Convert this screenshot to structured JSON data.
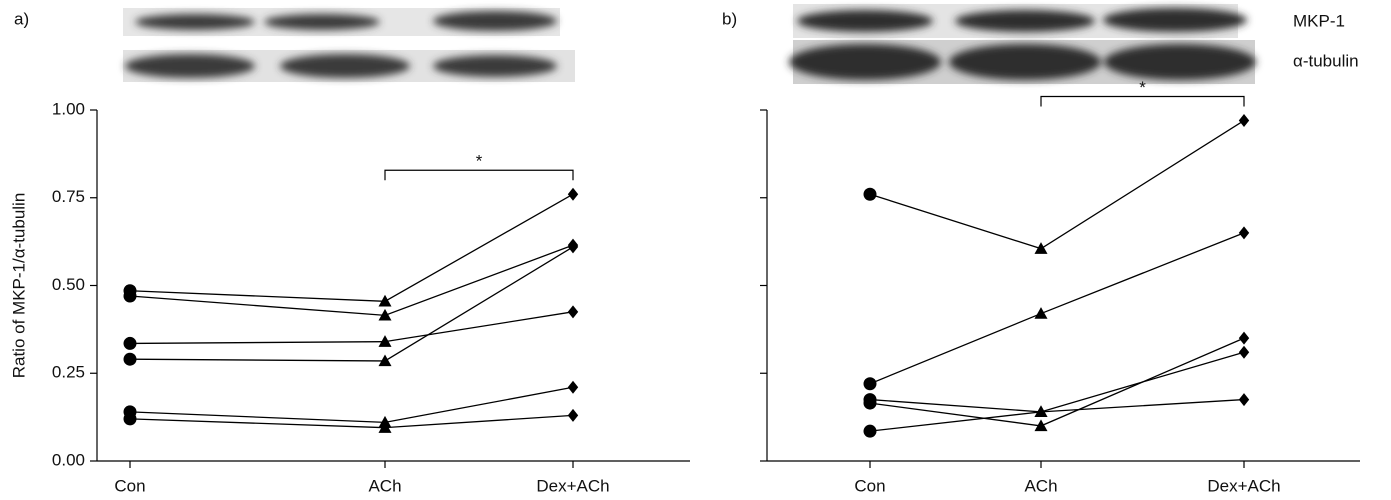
{
  "chart_data": [
    {
      "type": "line",
      "panel_label": "a)",
      "ylabel": "Ratio of MKP-1/α-tubulin",
      "categories": [
        "Con",
        "ACh",
        "Dex+ACh"
      ],
      "markers": [
        "circle",
        "triangle",
        "diamond"
      ],
      "color": "#000000",
      "ylim": [
        0,
        1
      ],
      "yticks": [
        {
          "value": 0,
          "label": "0.00"
        },
        {
          "value": 0.25,
          "label": "0.25"
        },
        {
          "value": 0.5,
          "label": "0.50"
        },
        {
          "value": 0.75,
          "label": "0.75"
        },
        {
          "value": 1,
          "label": "1.00"
        }
      ],
      "ytick_labels": true,
      "series": [
        {
          "values": [
            0.485,
            0.455,
            0.76
          ]
        },
        {
          "values": [
            0.47,
            0.415,
            0.615
          ]
        },
        {
          "values": [
            0.335,
            0.34,
            0.425
          ]
        },
        {
          "values": [
            0.29,
            0.285,
            0.61
          ]
        },
        {
          "values": [
            0.14,
            0.11,
            0.21
          ]
        },
        {
          "values": [
            0.12,
            0.095,
            0.13
          ]
        }
      ],
      "significance": {
        "from": 1,
        "to": 2,
        "label": "*"
      }
    },
    {
      "type": "line",
      "panel_label": "b)",
      "row_labels": [
        "MKP-1",
        "α-tubulin"
      ],
      "categories": [
        "Con",
        "ACh",
        "Dex+ACh"
      ],
      "markers": [
        "circle",
        "triangle",
        "diamond"
      ],
      "color": "#000000",
      "ylim": [
        0,
        1
      ],
      "yticks": [
        0,
        0.25,
        0.5,
        0.75,
        1
      ],
      "ytick_labels": false,
      "series": [
        {
          "values": [
            0.76,
            0.605,
            0.97
          ]
        },
        {
          "values": [
            0.22,
            0.42,
            0.65
          ]
        },
        {
          "values": [
            0.165,
            0.1,
            0.35
          ]
        },
        {
          "values": [
            0.085,
            0.14,
            0.31
          ]
        },
        {
          "values": [
            0.175,
            0.14,
            0.175
          ]
        }
      ],
      "significance": {
        "from": 1,
        "to": 2,
        "label": "*"
      }
    }
  ]
}
